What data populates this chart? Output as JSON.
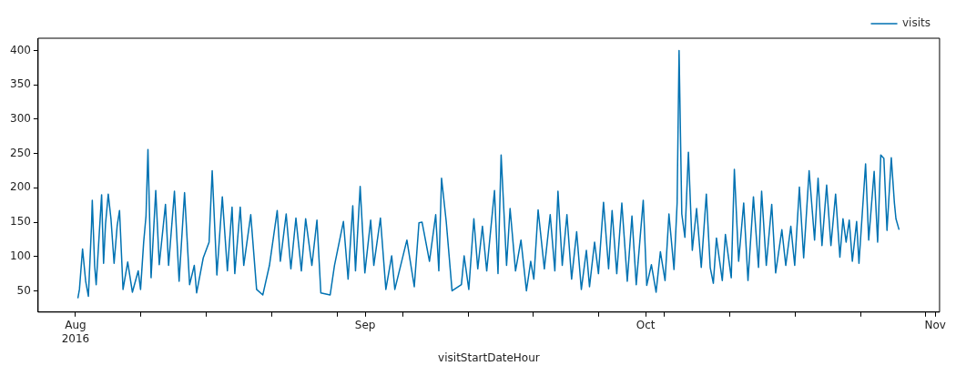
{
  "chart_data": {
    "type": "line",
    "xlabel": "visitStartDateHour",
    "legend": "top right",
    "grid": false,
    "xlim": [
      "2016-07-28",
      "2016-11-01T11:00"
    ],
    "ylim": [
      19,
      418
    ],
    "xticks": [
      {
        "value": "2016-08-01",
        "label": "Aug\n2016"
      },
      {
        "value": "2016-08-08",
        "label": null
      },
      {
        "value": "2016-08-15",
        "label": null
      },
      {
        "value": "2016-08-22",
        "label": null
      },
      {
        "value": "2016-08-29",
        "label": null
      },
      {
        "value": "2016-09-01",
        "label": "Sep"
      },
      {
        "value": "2016-09-05",
        "label": null
      },
      {
        "value": "2016-09-12",
        "label": null
      },
      {
        "value": "2016-09-19",
        "label": null
      },
      {
        "value": "2016-09-26",
        "label": null
      },
      {
        "value": "2016-10-01",
        "label": "Oct"
      },
      {
        "value": "2016-10-03",
        "label": null
      },
      {
        "value": "2016-10-10",
        "label": null
      },
      {
        "value": "2016-10-17",
        "label": null
      },
      {
        "value": "2016-10-24",
        "label": null
      },
      {
        "value": "2016-10-31",
        "label": null
      },
      {
        "value": "2016-11-01",
        "label": "Nov"
      }
    ],
    "yticks": [
      50,
      100,
      150,
      200,
      250,
      300,
      350,
      400
    ],
    "x": [
      "2016-08-01T06:00",
      "2016-08-01T10:00",
      "2016-08-01T18:00",
      "2016-08-02T02:00",
      "2016-08-02T09:00",
      "2016-08-02T17:00",
      "2016-08-02T19:00",
      "2016-08-03T01:00",
      "2016-08-03T05:00",
      "2016-08-03T19:00",
      "2016-08-04T00:00",
      "2016-08-04T05:00",
      "2016-08-04T12:00",
      "2016-08-04T19:00",
      "2016-08-05T03:00",
      "2016-08-05T11:00",
      "2016-08-05T17:00",
      "2016-08-06T02:00",
      "2016-08-06T14:00",
      "2016-08-07T02:00",
      "2016-08-07T17:00",
      "2016-08-07T23:00",
      "2016-08-08T07:00",
      "2016-08-08T13:00",
      "2016-08-08T18:00",
      "2016-08-09T02:00",
      "2016-08-09T14:00",
      "2016-08-09T23:00",
      "2016-08-10T15:00",
      "2016-08-10T23:00",
      "2016-08-11T14:00",
      "2016-08-12T02:00",
      "2016-08-12T16:00",
      "2016-08-13T05:00",
      "2016-08-13T17:00",
      "2016-08-13T23:00",
      "2016-08-14T16:00",
      "2016-08-15T07:00",
      "2016-08-15T15:00",
      "2016-08-16T03:00",
      "2016-08-16T17:00",
      "2016-08-17T06:00",
      "2016-08-17T18:00",
      "2016-08-18T01:00",
      "2016-08-18T15:00",
      "2016-08-19T00:00",
      "2016-08-19T18:00",
      "2016-08-20T09:00",
      "2016-08-21T01:00",
      "2016-08-21T18:00",
      "2016-08-22T14:00",
      "2016-08-22T22:00",
      "2016-08-23T13:00",
      "2016-08-24T01:00",
      "2016-08-24T14:00",
      "2016-08-25T04:00",
      "2016-08-25T15:00",
      "2016-08-26T07:00",
      "2016-08-26T20:00",
      "2016-08-27T06:00",
      "2016-08-28T06:00",
      "2016-08-28T17:00",
      "2016-08-29T16:00",
      "2016-08-30T04:00",
      "2016-08-30T16:00",
      "2016-08-30T23:00",
      "2016-08-31T11:00",
      "2016-08-31T23:00",
      "2016-09-01T14:00",
      "2016-09-01T22:00",
      "2016-09-02T15:00",
      "2016-09-03T05:00",
      "2016-09-03T20:00",
      "2016-09-04T04:00",
      "2016-09-05T11:00",
      "2016-09-06T06:00",
      "2016-09-06T18:00",
      "2016-09-07T02:00",
      "2016-09-07T21:00",
      "2016-09-08T13:00",
      "2016-09-08T21:00",
      "2016-09-09T04:00",
      "2016-09-09T16:00",
      "2016-09-10T07:00",
      "2016-09-11T07:00",
      "2016-09-11T14:00",
      "2016-09-12T02:00",
      "2016-09-12T15:00",
      "2016-09-13T01:00",
      "2016-09-13T13:00",
      "2016-09-14T00:00",
      "2016-09-14T20:00",
      "2016-09-15T05:00",
      "2016-09-15T13:00",
      "2016-09-16T03:00",
      "2016-09-16T12:00",
      "2016-09-17T02:00",
      "2016-09-17T16:00",
      "2016-09-18T06:00",
      "2016-09-18T17:00",
      "2016-09-19T01:00",
      "2016-09-19T12:00",
      "2016-09-20T04:00",
      "2016-09-20T19:00",
      "2016-09-21T07:00",
      "2016-09-21T15:00",
      "2016-09-22T02:00",
      "2016-09-22T14:00",
      "2016-09-23T02:00",
      "2016-09-23T15:00",
      "2016-09-24T03:00",
      "2016-09-24T16:00",
      "2016-09-25T00:00",
      "2016-09-25T13:00",
      "2016-09-25T23:00",
      "2016-09-26T12:00",
      "2016-09-27T01:00",
      "2016-09-27T10:00",
      "2016-09-27T22:00",
      "2016-09-28T11:00",
      "2016-09-29T01:00",
      "2016-09-29T13:00",
      "2016-09-30T00:00",
      "2016-09-30T18:00",
      "2016-10-01T03:00",
      "2016-10-01T15:00",
      "2016-10-02T03:00",
      "2016-10-02T14:00",
      "2016-10-03T02:00",
      "2016-10-03T12:00",
      "2016-10-04T01:00",
      "2016-10-04T09:00",
      "2016-10-04T14:00",
      "2016-10-04T21:00",
      "2016-10-05T05:00",
      "2016-10-05T14:00",
      "2016-10-06T00:00",
      "2016-10-06T11:00",
      "2016-10-06T23:00",
      "2016-10-07T12:00",
      "2016-10-07T22:00",
      "2016-10-08T06:00",
      "2016-10-08T14:00",
      "2016-10-09T05:00",
      "2016-10-09T13:00",
      "2016-10-10T04:00",
      "2016-10-10T12:00",
      "2016-10-10T23:00",
      "2016-10-11T12:00",
      "2016-10-11T23:00",
      "2016-10-12T13:00",
      "2016-10-13T02:00",
      "2016-10-13T10:00",
      "2016-10-13T22:00",
      "2016-10-14T12:00",
      "2016-10-14T22:00",
      "2016-10-15T14:00",
      "2016-10-16T00:00",
      "2016-10-16T13:00",
      "2016-10-16T23:00",
      "2016-10-17T11:00",
      "2016-10-17T22:00",
      "2016-10-18T12:00",
      "2016-10-19T02:00",
      "2016-10-19T11:00",
      "2016-10-19T21:00",
      "2016-10-20T09:00",
      "2016-10-20T20:00",
      "2016-10-21T08:00",
      "2016-10-21T19:00",
      "2016-10-22T03:00",
      "2016-10-22T11:00",
      "2016-10-22T19:00",
      "2016-10-23T03:00",
      "2016-10-23T14:00",
      "2016-10-23T20:00",
      "2016-10-24T13:00",
      "2016-10-24T21:00",
      "2016-10-25T11:00",
      "2016-10-25T20:00",
      "2016-10-26T04:00",
      "2016-10-26T12:00",
      "2016-10-26T20:00",
      "2016-10-27T07:00",
      "2016-10-27T15:00",
      "2016-10-27T19:00",
      "2016-10-28T03:00"
    ],
    "series": [
      {
        "name": "visits",
        "color": "#0072b2",
        "values": [
          39,
          52,
          111,
          64,
          42,
          144,
          182,
          87,
          59,
          190,
          90,
          147,
          191,
          155,
          90,
          145,
          167,
          52,
          92,
          48,
          79,
          52,
          121,
          159,
          256,
          69,
          196,
          88,
          176,
          87,
          195,
          64,
          193,
          59,
          87,
          47,
          98,
          121,
          225,
          73,
          187,
          79,
          172,
          75,
          172,
          87,
          161,
          52,
          44,
          87,
          167,
          93,
          162,
          82,
          156,
          79,
          155,
          87,
          153,
          47,
          44,
          87,
          151,
          67,
          174,
          79,
          202,
          76,
          153,
          87,
          156,
          52,
          101,
          52,
          124,
          56,
          149,
          150,
          93,
          161,
          79,
          214,
          151,
          50,
          59,
          101,
          52,
          155,
          82,
          144,
          79,
          196,
          75,
          248,
          87,
          170,
          79,
          124,
          50,
          93,
          67,
          168,
          82,
          161,
          79,
          195,
          87,
          161,
          67,
          136,
          52,
          109,
          56,
          121,
          75,
          179,
          82,
          167,
          75,
          178,
          64,
          159,
          59,
          182,
          58,
          88,
          48,
          107,
          65,
          162,
          81,
          178,
          400,
          162,
          128,
          252,
          109,
          170,
          84,
          191,
          84,
          61,
          127,
          65,
          132,
          69,
          227,
          93,
          178,
          65,
          187,
          84,
          195,
          87,
          176,
          76,
          139,
          87,
          144,
          87,
          201,
          98,
          225,
          124,
          214,
          116,
          204,
          116,
          191,
          99,
          155,
          121,
          153,
          93,
          151,
          90,
          235,
          124,
          224,
          121,
          248,
          243,
          138,
          244,
          178,
          155,
          139
        ]
      }
    ]
  }
}
